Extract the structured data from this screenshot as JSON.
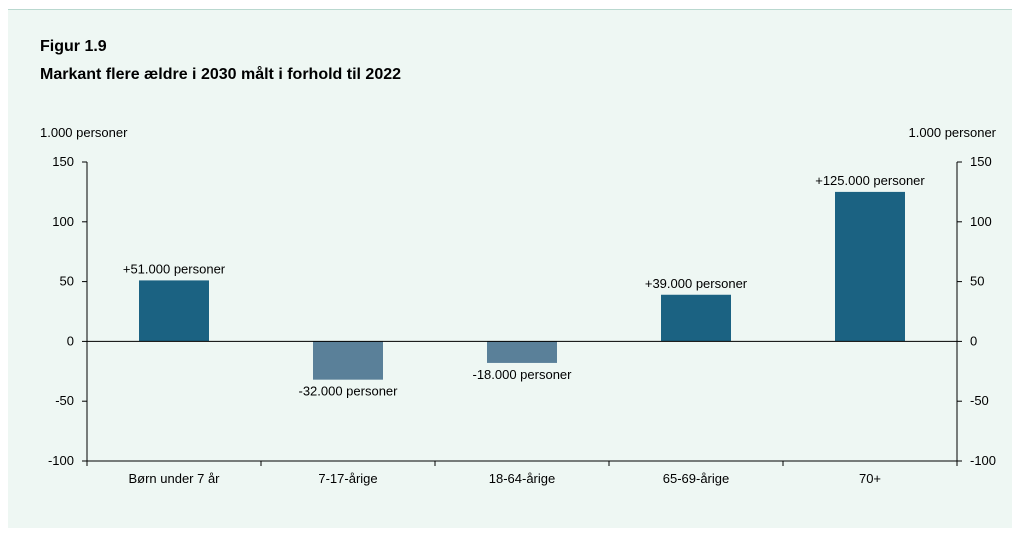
{
  "figure_label": "Figur 1.9",
  "chart_data": {
    "type": "bar",
    "title": "Markant flere ældre i 2030 målt i forhold til 2022",
    "ylabel_left": "1.000 personer",
    "ylabel_right": "1.000 personer",
    "ylim": [
      -100,
      150
    ],
    "yticks": [
      150,
      100,
      50,
      0,
      -50,
      -100
    ],
    "categories": [
      "Børn under 7 år",
      "7-17-årige",
      "18-64-årige",
      "65-69-årige",
      "70+"
    ],
    "values": [
      51,
      -32,
      -18,
      39,
      125
    ],
    "data_labels": [
      "+51.000 personer",
      "-32.000 personer",
      "-18.000 personer",
      "+39.000 personer",
      "+125.000 personer"
    ],
    "colors": {
      "positive": "#1b6282",
      "negative": "#5a8099",
      "axis": "#000000"
    },
    "grid": false
  }
}
